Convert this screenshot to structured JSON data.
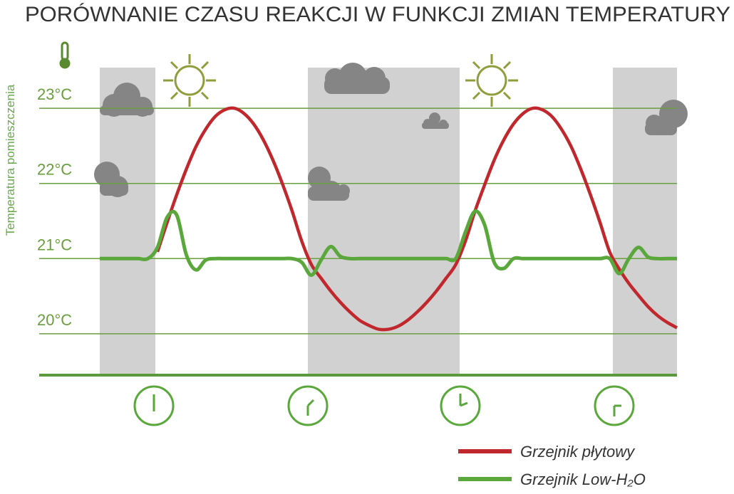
{
  "chart_data": {
    "type": "line",
    "title": "PORÓWNANIE CZASU REAKCJI W FUNKCJI ZMIAN TEMPERATURY",
    "ylabel": "Temperatura pomieszczenia",
    "categories": [
      null,
      null,
      null,
      null,
      null,
      null,
      null,
      null,
      null,
      null,
      null,
      null,
      null,
      null,
      null,
      null,
      null,
      null,
      null,
      null,
      null,
      null,
      null,
      null,
      null,
      null,
      null,
      null,
      null,
      null,
      null,
      null,
      null,
      null,
      null,
      null,
      null,
      null,
      null,
      null,
      null,
      null,
      null,
      null,
      null,
      null,
      null,
      null,
      null,
      null,
      null,
      null,
      null,
      null,
      null,
      null,
      null,
      null,
      null,
      null,
      null
    ],
    "series": [
      {
        "name": "Grzejnik płytowy",
        "color": "#c0282d",
        "values": [
          null,
          null,
          null,
          null,
          null,
          null,
          21.09,
          21.48,
          21.85,
          22.19,
          22.49,
          22.72,
          22.89,
          22.98,
          23.0,
          22.93,
          22.79,
          22.58,
          22.31,
          21.99,
          21.63,
          21.23,
          20.92,
          20.74,
          20.57,
          20.42,
          20.29,
          20.18,
          20.11,
          20.06,
          20.06,
          20.1,
          20.18,
          20.29,
          20.42,
          20.57,
          20.74,
          20.92,
          21.23,
          21.63,
          21.98,
          22.31,
          22.58,
          22.79,
          22.93,
          23.0,
          22.98,
          22.89,
          22.72,
          22.49,
          22.19,
          21.85,
          21.48,
          21.09,
          20.86,
          20.67,
          20.51,
          20.36,
          20.24,
          20.15,
          20.08
        ]
      },
      {
        "name": "Grzejnik Low-H₂O",
        "color": "#5aa83c",
        "values": [
          21,
          21,
          21,
          21,
          21,
          21,
          21.15,
          21.55,
          21.58,
          21.05,
          20.85,
          20.98,
          21,
          21,
          21,
          21,
          21,
          21,
          21,
          21,
          21,
          20.95,
          20.78,
          20.98,
          21.16,
          21.03,
          21,
          21,
          21,
          21,
          21,
          21,
          21,
          21,
          21,
          21,
          21,
          21,
          21.35,
          21.63,
          21.45,
          20.95,
          20.87,
          21,
          21,
          21,
          21,
          21,
          21,
          21,
          21,
          21,
          21,
          21,
          20.8,
          21.0,
          21.15,
          21.02,
          21,
          21,
          21
        ]
      }
    ],
    "ylim": [
      19.45,
      23.55
    ],
    "yticks": [
      {
        "value": 20,
        "label": "20°C"
      },
      {
        "value": 21,
        "label": "21°C"
      },
      {
        "value": 22,
        "label": "22°C"
      },
      {
        "value": 23,
        "label": "23°C"
      }
    ],
    "grid": true
  }
}
